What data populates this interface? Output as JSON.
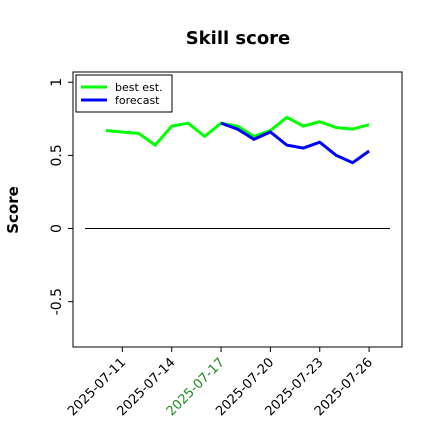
{
  "chart_data": {
    "type": "line",
    "title": "Skill score",
    "y_label": "Score",
    "series": [
      {
        "name": "best est.",
        "color": "#00ff00",
        "x": [
          "2025-07-10",
          "2025-07-12",
          "2025-07-13",
          "2025-07-14",
          "2025-07-15",
          "2025-07-16",
          "2025-07-17",
          "2025-07-18",
          "2025-07-19",
          "2025-07-20",
          "2025-07-21",
          "2025-07-22",
          "2025-07-23",
          "2025-07-24",
          "2025-07-25",
          "2025-07-26"
        ],
        "values": [
          0.67,
          0.65,
          0.57,
          0.7,
          0.72,
          0.63,
          0.72,
          0.7,
          0.63,
          0.67,
          0.76,
          0.7,
          0.73,
          0.69,
          0.68,
          0.71
        ]
      },
      {
        "name": "forecast",
        "color": "#0000ff",
        "x": [
          "2025-07-17",
          "2025-07-18",
          "2025-07-19",
          "2025-07-20",
          "2025-07-21",
          "2025-07-22",
          "2025-07-23",
          "2025-07-24",
          "2025-07-25",
          "2025-07-26"
        ],
        "values": [
          0.72,
          0.68,
          0.61,
          0.66,
          0.57,
          0.55,
          0.59,
          0.5,
          0.45,
          0.53
        ]
      }
    ],
    "hline": 0,
    "xlim": [
      "2025-07-08",
      "2025-07-28"
    ],
    "xticks": [
      "2025-07-11",
      "2025-07-14",
      "2025-07-17",
      "2025-07-20",
      "2025-07-23",
      "2025-07-26"
    ],
    "xtick_colors": [
      "#000000",
      "#000000",
      "#228b22",
      "#000000",
      "#000000",
      "#000000"
    ],
    "ylim": [
      -0.81,
      1.07
    ],
    "yticks": [
      -0.5,
      0.0,
      0.5,
      1.0
    ],
    "legend": "upper-left"
  }
}
